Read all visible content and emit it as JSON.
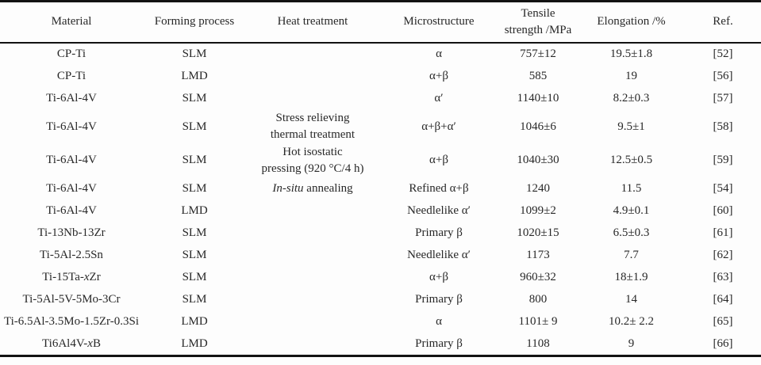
{
  "table": {
    "columns": [
      "Material",
      "Forming process",
      "Heat treatment",
      "Microstructure",
      "Tensile\nstrength /MPa",
      "Elongation /%",
      "Ref."
    ],
    "rows": [
      [
        "CP-Ti",
        "SLM",
        "",
        "α",
        "757±12",
        "19.5±1.8",
        "[52]"
      ],
      [
        "CP-Ti",
        "LMD",
        "",
        "α+β",
        "585",
        "19",
        "[56]"
      ],
      [
        "Ti-6Al-4V",
        "SLM",
        "",
        "α′",
        "1140±10",
        "8.2±0.3",
        "[57]"
      ],
      [
        "Ti-6Al-4V",
        "SLM",
        "Stress relieving\nthermal treatment",
        "α+β+α′",
        "1046±6",
        "9.5±1",
        "[58]"
      ],
      [
        "Ti-6Al-4V",
        "SLM",
        "Hot isostatic\npressing (920 °C/4 h)",
        "α+β",
        "1040±30",
        "12.5±0.5",
        "[59]"
      ],
      [
        "Ti-6Al-4V",
        "SLM",
        "*In-situ* annealing",
        "Refined α+β",
        "1240",
        "11.5",
        "[54]"
      ],
      [
        "Ti-6Al-4V",
        "LMD",
        "",
        "Needlelike α′",
        "1099±2",
        "4.9±0.1",
        "[60]"
      ],
      [
        "Ti-13Nb-13Zr",
        "SLM",
        "",
        "Primary β",
        "1020±15",
        "6.5±0.3",
        "[61]"
      ],
      [
        "Ti-5Al-2.5Sn",
        "SLM",
        "",
        "Needlelike α′",
        "1173",
        "7.7",
        "[62]"
      ],
      [
        "Ti-15Ta-*x*Zr",
        "SLM",
        "",
        "α+β",
        "960±32",
        "18±1.9",
        "[63]"
      ],
      [
        "Ti-5Al-5V-5Mo-3Cr",
        "SLM",
        "",
        "Primary β",
        "800",
        "14",
        "[64]"
      ],
      [
        "Ti-6.5Al-3.5Mo-1.5Zr-0.3Si",
        "LMD",
        "",
        "α",
        "1101± 9",
        "10.2± 2.2",
        "[65]"
      ],
      [
        "Ti6Al4V-*x*B",
        "LMD",
        "",
        "Primary β",
        "1108",
        "9",
        "[66]"
      ]
    ]
  },
  "colors": {
    "text": "#282828",
    "rule": "#121212",
    "background": "#fdfdfd"
  }
}
